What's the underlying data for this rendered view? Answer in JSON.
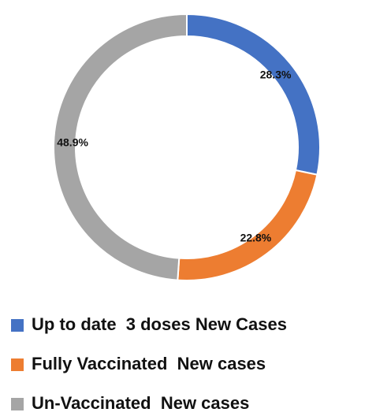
{
  "chart_data": {
    "type": "donut",
    "categories": [
      "Up to date  3 doses New Cases",
      "Fully Vaccinated  New cases",
      "Un-Vaccinated  New cases"
    ],
    "values": [
      28.3,
      22.8,
      48.9
    ],
    "value_labels": [
      "28.3%",
      "22.8%",
      "48.9%"
    ],
    "colors": [
      "#4472c4",
      "#ed7d31",
      "#a5a5a5"
    ],
    "legend": "bottom"
  }
}
